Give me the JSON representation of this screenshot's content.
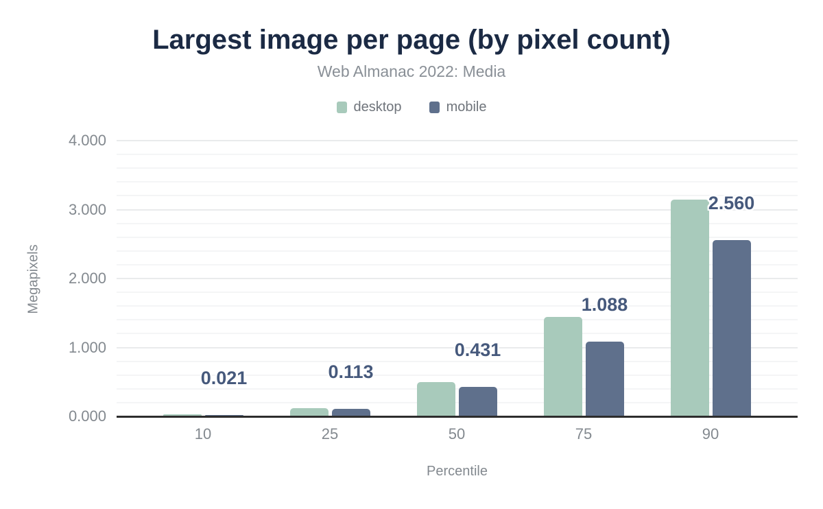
{
  "chart_data": {
    "type": "bar",
    "title": "Largest image per page (by pixel count)",
    "subtitle": "Web Almanac 2022: Media",
    "xlabel": "Percentile",
    "ylabel": "Megapixels",
    "categories": [
      "10",
      "25",
      "50",
      "75",
      "90"
    ],
    "series": [
      {
        "name": "desktop",
        "color": "#a8cabb",
        "values": [
          0.03,
          0.12,
          0.5,
          1.44,
          3.14
        ],
        "values_note": "estimated from bar heights; not labeled in chart"
      },
      {
        "name": "mobile",
        "color": "#5f708c",
        "values": [
          0.021,
          0.113,
          0.431,
          1.088,
          2.56
        ],
        "data_labels": [
          "0.021",
          "0.113",
          "0.431",
          "1.088",
          "2.560"
        ]
      }
    ],
    "ylim": [
      0,
      4
    ],
    "y_ticks": [
      "0.000",
      "1.000",
      "2.000",
      "3.000",
      "4.000"
    ],
    "y_minor_step": 0.2,
    "grid": "horizontal",
    "legend_position": "top",
    "colors": {
      "title_text": "#1b2a44",
      "subtitle_text": "#898f96",
      "axis_text": "#83898f",
      "legend_text": "#6f747b",
      "data_label_text": "#46597c",
      "gridline_major": "#e9ebec",
      "gridline_minor": "#f4f5f6",
      "axis_line": "#2d2d2d",
      "background": "#ffffff"
    }
  }
}
